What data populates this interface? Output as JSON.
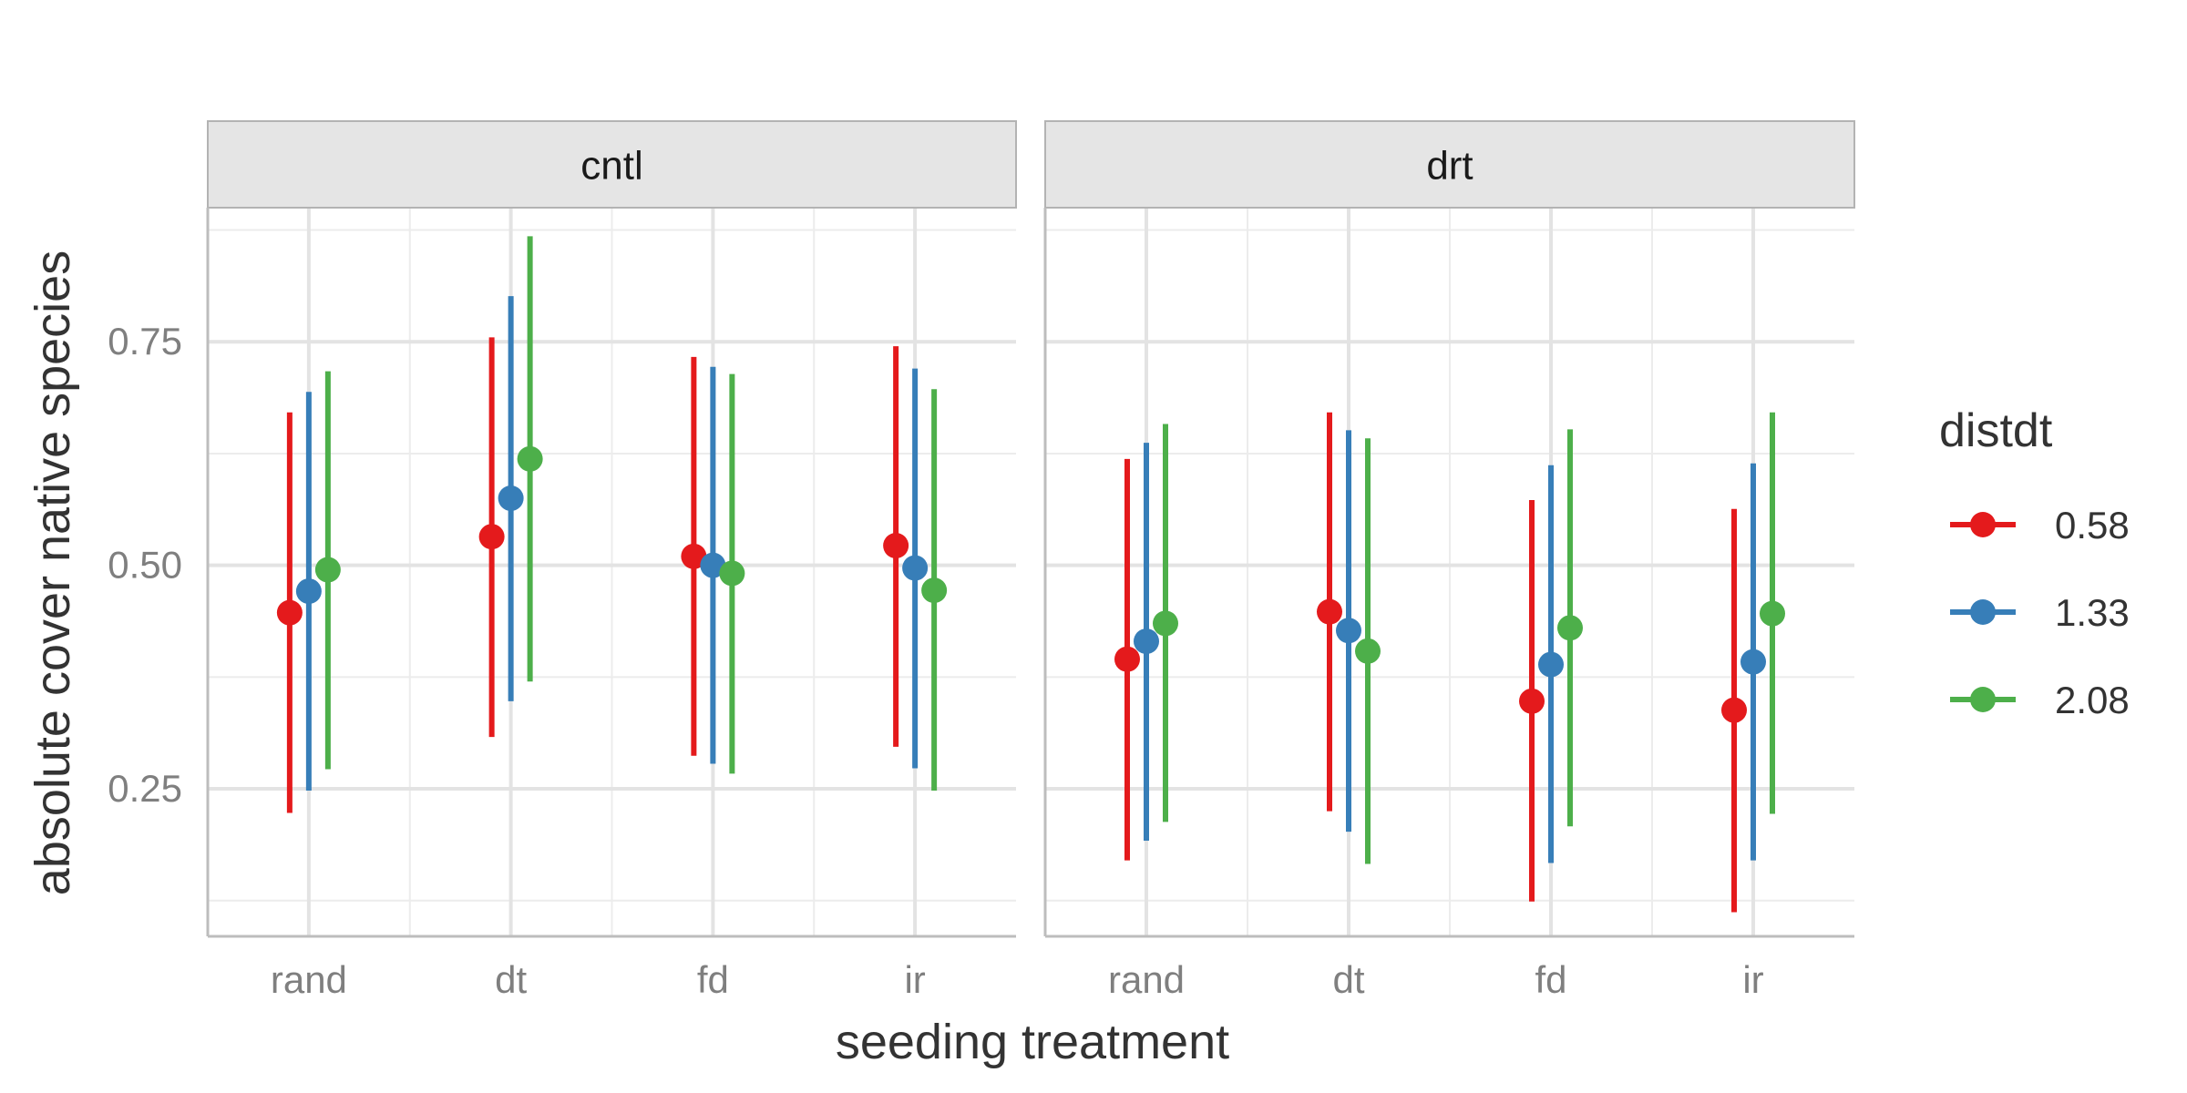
{
  "chart_data": {
    "type": "scatter",
    "subtype": "point-range",
    "xlabel": "seeding treatment",
    "ylabel": "absolute cover native species",
    "categories": [
      "rand",
      "dt",
      "fd",
      "ir"
    ],
    "ylim": [
      0.085,
      0.9
    ],
    "yticks": [
      0.25,
      0.5,
      0.75
    ],
    "ytick_labels": [
      "0.25",
      "0.50",
      "0.75"
    ],
    "grid": true,
    "legend": {
      "title": "distdt",
      "placement": "right",
      "entries": [
        "0.58",
        "1.33",
        "2.08"
      ]
    },
    "colors": {
      "0.58": "#e41a1c",
      "1.33": "#377eb8",
      "2.08": "#4daf4a"
    },
    "panels": [
      {
        "label": "cntl",
        "series": [
          {
            "name": "0.58",
            "estimate": [
              0.447,
              0.532,
              0.51,
              0.522
            ],
            "lower": [
              0.223,
              0.308,
              0.287,
              0.297
            ],
            "upper": [
              0.671,
              0.755,
              0.733,
              0.745
            ]
          },
          {
            "name": "1.33",
            "estimate": [
              0.471,
              0.575,
              0.5,
              0.497
            ],
            "lower": [
              0.248,
              0.348,
              0.278,
              0.273
            ],
            "upper": [
              0.694,
              0.801,
              0.722,
              0.72
            ]
          },
          {
            "name": "2.08",
            "estimate": [
              0.495,
              0.619,
              0.491,
              0.472
            ],
            "lower": [
              0.272,
              0.37,
              0.267,
              0.248
            ],
            "upper": [
              0.717,
              0.868,
              0.714,
              0.697
            ]
          }
        ]
      },
      {
        "label": "drt",
        "series": [
          {
            "name": "0.58",
            "estimate": [
              0.395,
              0.448,
              0.348,
              0.338
            ],
            "lower": [
              0.17,
              0.225,
              0.124,
              0.112
            ],
            "upper": [
              0.619,
              0.671,
              0.573,
              0.563
            ]
          },
          {
            "name": "1.33",
            "estimate": [
              0.415,
              0.427,
              0.389,
              0.392
            ],
            "lower": [
              0.192,
              0.202,
              0.167,
              0.17
            ],
            "upper": [
              0.637,
              0.651,
              0.612,
              0.614
            ]
          },
          {
            "name": "2.08",
            "estimate": [
              0.435,
              0.404,
              0.43,
              0.446
            ],
            "lower": [
              0.213,
              0.166,
              0.208,
              0.222
            ],
            "upper": [
              0.658,
              0.642,
              0.652,
              0.671
            ]
          }
        ]
      }
    ]
  }
}
